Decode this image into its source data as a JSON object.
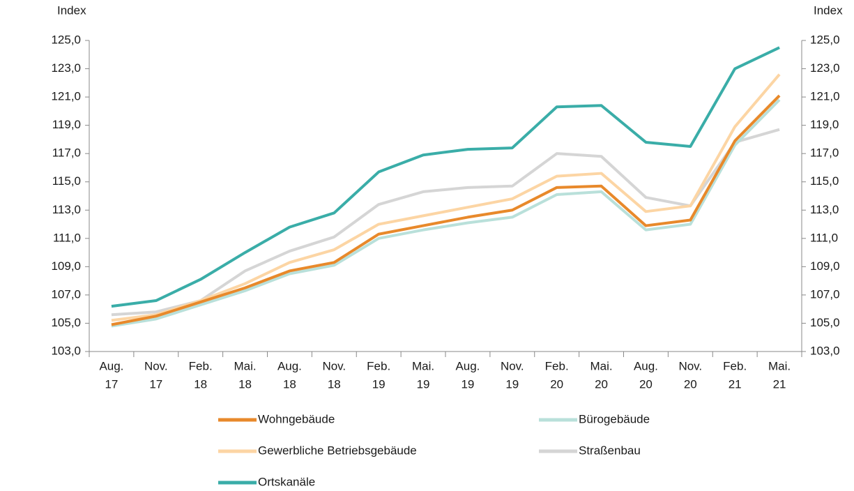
{
  "chart_data": {
    "type": "line",
    "y_label": "Index",
    "y2_label": "Index",
    "categories": [
      [
        "Aug.",
        "17"
      ],
      [
        "Nov.",
        "17"
      ],
      [
        "Feb.",
        "18"
      ],
      [
        "Mai.",
        "18"
      ],
      [
        "Aug.",
        "18"
      ],
      [
        "Nov.",
        "18"
      ],
      [
        "Feb.",
        "19"
      ],
      [
        "Mai.",
        "19"
      ],
      [
        "Aug.",
        "19"
      ],
      [
        "Nov.",
        "19"
      ],
      [
        "Feb.",
        "20"
      ],
      [
        "Mai.",
        "20"
      ],
      [
        "Aug.",
        "20"
      ],
      [
        "Nov.",
        "20"
      ],
      [
        "Feb.",
        "21"
      ],
      [
        "Mai.",
        "21"
      ]
    ],
    "series": [
      {
        "name": "Wohngebäude",
        "color": "#e8892b",
        "values": [
          104.9,
          105.5,
          106.5,
          107.5,
          108.7,
          109.3,
          111.3,
          111.9,
          112.5,
          113.0,
          114.6,
          114.7,
          111.9,
          112.3,
          117.9,
          121.1
        ]
      },
      {
        "name": "Bürogebäude",
        "color": "#b9e0da",
        "values": [
          104.8,
          105.3,
          106.3,
          107.3,
          108.5,
          109.1,
          111.0,
          111.6,
          112.1,
          112.5,
          114.1,
          114.3,
          111.6,
          112.0,
          117.6,
          120.8
        ]
      },
      {
        "name": "Gewerbliche Betriebsgebäude",
        "color": "#fcd5a4",
        "values": [
          105.2,
          105.6,
          106.6,
          107.8,
          109.3,
          110.2,
          112.0,
          112.6,
          113.2,
          113.8,
          115.4,
          115.6,
          112.9,
          113.3,
          118.9,
          122.6
        ]
      },
      {
        "name": "Straßenbau",
        "color": "#d5d5d5",
        "values": [
          105.6,
          105.8,
          106.6,
          108.7,
          110.1,
          111.1,
          113.4,
          114.3,
          114.6,
          114.7,
          117.0,
          116.8,
          113.9,
          113.3,
          117.8,
          118.7
        ]
      },
      {
        "name": "Ortskanäle",
        "color": "#3aada8",
        "values": [
          106.2,
          106.6,
          108.1,
          110.0,
          111.8,
          112.8,
          115.7,
          116.9,
          117.3,
          117.4,
          120.3,
          120.4,
          117.8,
          117.5,
          123.0,
          124.5
        ]
      }
    ],
    "ylim": [
      103,
      125
    ],
    "yticks": [
      {
        "value": 103,
        "label": "103,0"
      },
      {
        "value": 105,
        "label": "105,0"
      },
      {
        "value": 107,
        "label": "107,0"
      },
      {
        "value": 109,
        "label": "109,0"
      },
      {
        "value": 111,
        "label": "111,0"
      },
      {
        "value": 113,
        "label": "113,0"
      },
      {
        "value": 115,
        "label": "115,0"
      },
      {
        "value": 117,
        "label": "117,0"
      },
      {
        "value": 119,
        "label": "119,0"
      },
      {
        "value": 121,
        "label": "121,0"
      },
      {
        "value": 123,
        "label": "123,0"
      },
      {
        "value": 125,
        "label": "125,0"
      }
    ],
    "y2lim": [
      103,
      125
    ],
    "y2ticks": [
      {
        "value": 103,
        "label": "103,0"
      },
      {
        "value": 105,
        "label": "105,0"
      },
      {
        "value": 107,
        "label": "107,0"
      },
      {
        "value": 109,
        "label": "109,0"
      },
      {
        "value": 111,
        "label": "111,0"
      },
      {
        "value": 113,
        "label": "113,0"
      },
      {
        "value": 115,
        "label": "115,0"
      },
      {
        "value": 117,
        "label": "117,0"
      },
      {
        "value": 119,
        "label": "119,0"
      },
      {
        "value": 121,
        "label": "121,0"
      },
      {
        "value": 123,
        "label": "123,0"
      },
      {
        "value": 125,
        "label": "125,0"
      }
    ],
    "grid": false
  }
}
